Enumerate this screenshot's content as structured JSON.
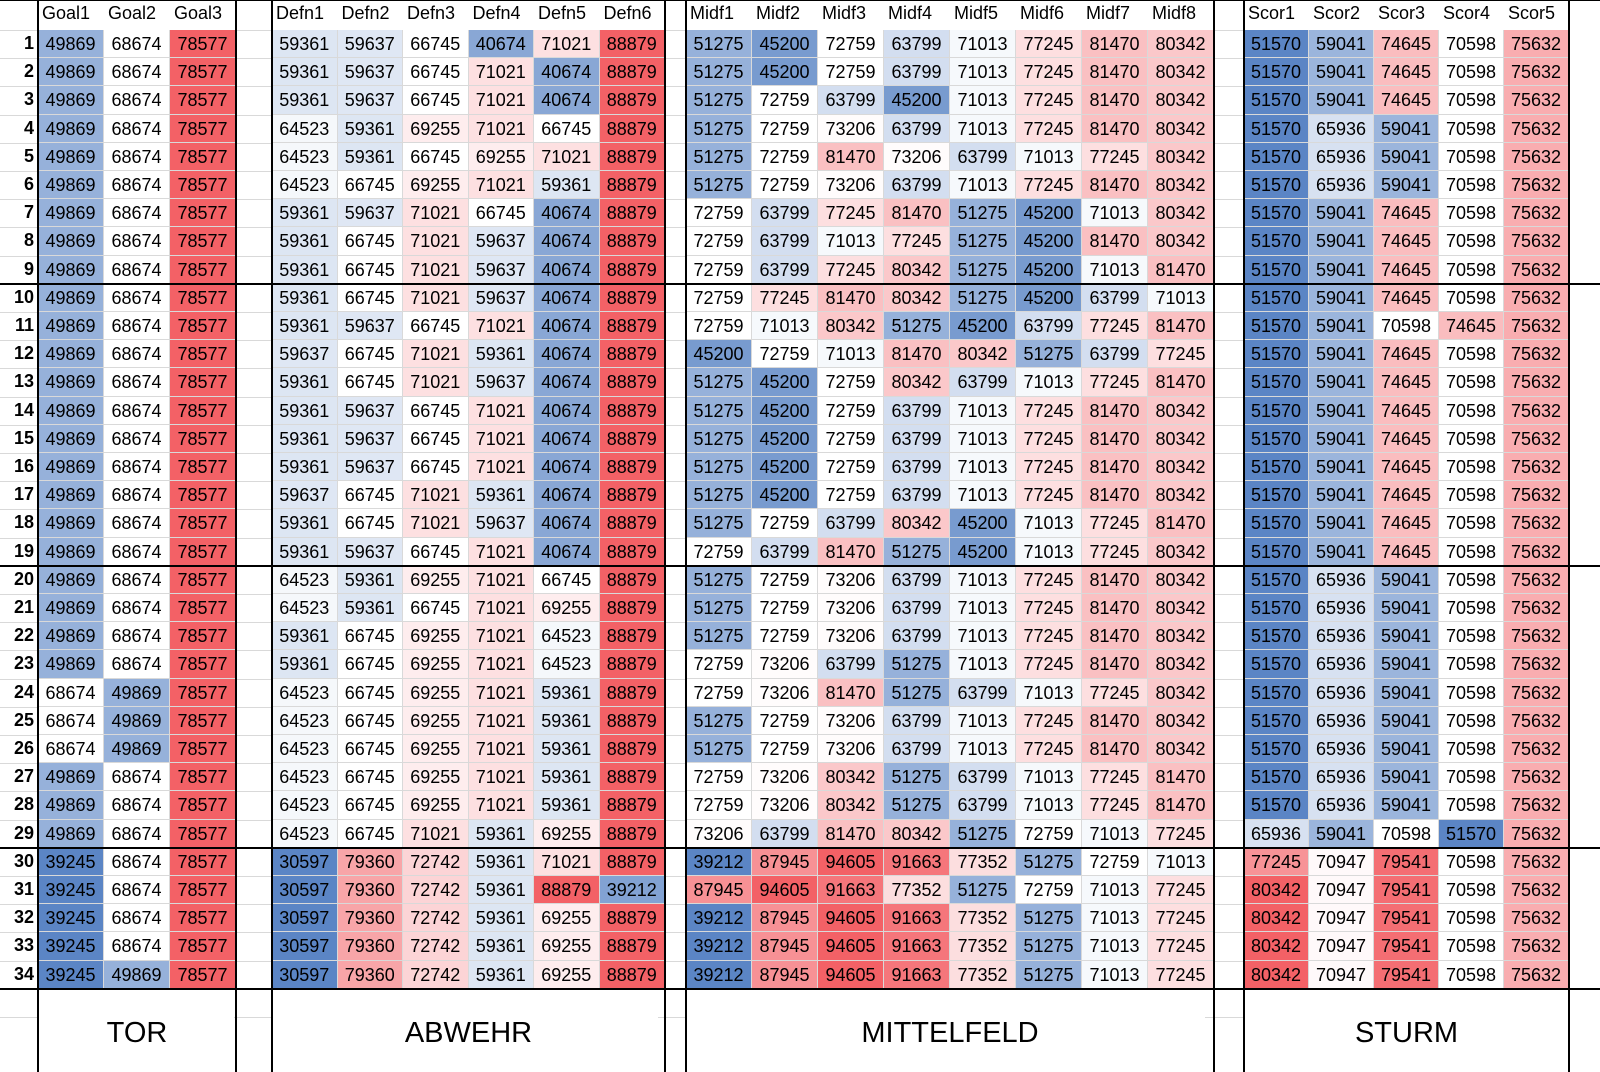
{
  "colors": {
    "low": "#5b85c5",
    "mid": "#ffffff",
    "high": "#f36166",
    "grid": "#d9d9d9",
    "border": "#000000"
  },
  "row_numbers": [
    "1",
    "2",
    "3",
    "4",
    "5",
    "6",
    "7",
    "8",
    "9",
    "10",
    "11",
    "12",
    "13",
    "14",
    "15",
    "16",
    "17",
    "18",
    "19",
    "20",
    "21",
    "22",
    "23",
    "24",
    "25",
    "26",
    "27",
    "28",
    "29",
    "30",
    "31",
    "32",
    "33",
    "34"
  ],
  "groups": [
    {
      "label": "TOR",
      "headers": [
        "Goal1",
        "Goal2",
        "Goal3"
      ],
      "rows": [
        [
          "49869",
          "68674",
          "78577"
        ],
        [
          "49869",
          "68674",
          "78577"
        ],
        [
          "49869",
          "68674",
          "78577"
        ],
        [
          "49869",
          "68674",
          "78577"
        ],
        [
          "49869",
          "68674",
          "78577"
        ],
        [
          "49869",
          "68674",
          "78577"
        ],
        [
          "49869",
          "68674",
          "78577"
        ],
        [
          "49869",
          "68674",
          "78577"
        ],
        [
          "49869",
          "68674",
          "78577"
        ],
        [
          "49869",
          "68674",
          "78577"
        ],
        [
          "49869",
          "68674",
          "78577"
        ],
        [
          "49869",
          "68674",
          "78577"
        ],
        [
          "49869",
          "68674",
          "78577"
        ],
        [
          "49869",
          "68674",
          "78577"
        ],
        [
          "49869",
          "68674",
          "78577"
        ],
        [
          "49869",
          "68674",
          "78577"
        ],
        [
          "49869",
          "68674",
          "78577"
        ],
        [
          "49869",
          "68674",
          "78577"
        ],
        [
          "49869",
          "68674",
          "78577"
        ],
        [
          "49869",
          "68674",
          "78577"
        ],
        [
          "49869",
          "68674",
          "78577"
        ],
        [
          "49869",
          "68674",
          "78577"
        ],
        [
          "49869",
          "68674",
          "78577"
        ],
        [
          "68674",
          "49869",
          "78577"
        ],
        [
          "68674",
          "49869",
          "78577"
        ],
        [
          "68674",
          "49869",
          "78577"
        ],
        [
          "49869",
          "68674",
          "78577"
        ],
        [
          "49869",
          "68674",
          "78577"
        ],
        [
          "49869",
          "68674",
          "78577"
        ],
        [
          "39245",
          "68674",
          "78577"
        ],
        [
          "39245",
          "68674",
          "78577"
        ],
        [
          "39245",
          "68674",
          "78577"
        ],
        [
          "39245",
          "68674",
          "78577"
        ],
        [
          "39245",
          "49869",
          "78577"
        ]
      ]
    },
    {
      "label": "ABWEHR",
      "headers": [
        "Defn1",
        "Defn2",
        "Defn3",
        "Defn4",
        "Defn5",
        "Defn6"
      ],
      "rows": [
        [
          "59361",
          "59637",
          "66745",
          "40674",
          "71021",
          "88879"
        ],
        [
          "59361",
          "59637",
          "66745",
          "71021",
          "40674",
          "88879"
        ],
        [
          "59361",
          "59637",
          "66745",
          "71021",
          "40674",
          "88879"
        ],
        [
          "64523",
          "59361",
          "69255",
          "71021",
          "66745",
          "88879"
        ],
        [
          "64523",
          "59361",
          "66745",
          "69255",
          "71021",
          "88879"
        ],
        [
          "64523",
          "66745",
          "69255",
          "71021",
          "59361",
          "88879"
        ],
        [
          "59361",
          "59637",
          "71021",
          "66745",
          "40674",
          "88879"
        ],
        [
          "59361",
          "66745",
          "71021",
          "59637",
          "40674",
          "88879"
        ],
        [
          "59361",
          "66745",
          "71021",
          "59637",
          "40674",
          "88879"
        ],
        [
          "59361",
          "66745",
          "71021",
          "59637",
          "40674",
          "88879"
        ],
        [
          "59361",
          "59637",
          "66745",
          "71021",
          "40674",
          "88879"
        ],
        [
          "59637",
          "66745",
          "71021",
          "59361",
          "40674",
          "88879"
        ],
        [
          "59361",
          "66745",
          "71021",
          "59637",
          "40674",
          "88879"
        ],
        [
          "59361",
          "59637",
          "66745",
          "71021",
          "40674",
          "88879"
        ],
        [
          "59361",
          "59637",
          "66745",
          "71021",
          "40674",
          "88879"
        ],
        [
          "59361",
          "59637",
          "66745",
          "71021",
          "40674",
          "88879"
        ],
        [
          "59637",
          "66745",
          "71021",
          "59361",
          "40674",
          "88879"
        ],
        [
          "59361",
          "66745",
          "71021",
          "59637",
          "40674",
          "88879"
        ],
        [
          "59361",
          "59637",
          "66745",
          "71021",
          "40674",
          "88879"
        ],
        [
          "64523",
          "59361",
          "69255",
          "71021",
          "66745",
          "88879"
        ],
        [
          "64523",
          "59361",
          "66745",
          "71021",
          "69255",
          "88879"
        ],
        [
          "59361",
          "66745",
          "69255",
          "71021",
          "64523",
          "88879"
        ],
        [
          "59361",
          "66745",
          "69255",
          "71021",
          "64523",
          "88879"
        ],
        [
          "64523",
          "66745",
          "69255",
          "71021",
          "59361",
          "88879"
        ],
        [
          "64523",
          "66745",
          "69255",
          "71021",
          "59361",
          "88879"
        ],
        [
          "64523",
          "66745",
          "69255",
          "71021",
          "59361",
          "88879"
        ],
        [
          "64523",
          "66745",
          "69255",
          "71021",
          "59361",
          "88879"
        ],
        [
          "64523",
          "66745",
          "69255",
          "71021",
          "59361",
          "88879"
        ],
        [
          "64523",
          "66745",
          "71021",
          "59361",
          "69255",
          "88879"
        ],
        [
          "30597",
          "79360",
          "72742",
          "59361",
          "71021",
          "88879"
        ],
        [
          "30597",
          "79360",
          "72742",
          "59361",
          "88879",
          "39212"
        ],
        [
          "30597",
          "79360",
          "72742",
          "59361",
          "69255",
          "88879"
        ],
        [
          "30597",
          "79360",
          "72742",
          "59361",
          "69255",
          "88879"
        ],
        [
          "30597",
          "79360",
          "72742",
          "59361",
          "69255",
          "88879"
        ]
      ]
    },
    {
      "label": "MITTELFELD",
      "headers": [
        "Midf1",
        "Midf2",
        "Midf3",
        "Midf4",
        "Midf5",
        "Midf6",
        "Midf7",
        "Midf8"
      ],
      "rows": [
        [
          "51275",
          "45200",
          "72759",
          "63799",
          "71013",
          "77245",
          "81470",
          "80342"
        ],
        [
          "51275",
          "45200",
          "72759",
          "63799",
          "71013",
          "77245",
          "81470",
          "80342"
        ],
        [
          "51275",
          "72759",
          "63799",
          "45200",
          "71013",
          "77245",
          "81470",
          "80342"
        ],
        [
          "51275",
          "72759",
          "73206",
          "63799",
          "71013",
          "77245",
          "81470",
          "80342"
        ],
        [
          "51275",
          "72759",
          "81470",
          "73206",
          "63799",
          "71013",
          "77245",
          "80342"
        ],
        [
          "51275",
          "72759",
          "73206",
          "63799",
          "71013",
          "77245",
          "81470",
          "80342"
        ],
        [
          "72759",
          "63799",
          "77245",
          "81470",
          "51275",
          "45200",
          "71013",
          "80342"
        ],
        [
          "72759",
          "63799",
          "71013",
          "77245",
          "51275",
          "45200",
          "81470",
          "80342"
        ],
        [
          "72759",
          "63799",
          "77245",
          "80342",
          "51275",
          "45200",
          "71013",
          "81470"
        ],
        [
          "72759",
          "77245",
          "81470",
          "80342",
          "51275",
          "45200",
          "63799",
          "71013"
        ],
        [
          "72759",
          "71013",
          "80342",
          "51275",
          "45200",
          "63799",
          "77245",
          "81470"
        ],
        [
          "45200",
          "72759",
          "71013",
          "81470",
          "80342",
          "51275",
          "63799",
          "77245"
        ],
        [
          "51275",
          "45200",
          "72759",
          "80342",
          "63799",
          "71013",
          "77245",
          "81470"
        ],
        [
          "51275",
          "45200",
          "72759",
          "63799",
          "71013",
          "77245",
          "81470",
          "80342"
        ],
        [
          "51275",
          "45200",
          "72759",
          "63799",
          "71013",
          "77245",
          "81470",
          "80342"
        ],
        [
          "51275",
          "45200",
          "72759",
          "63799",
          "71013",
          "77245",
          "81470",
          "80342"
        ],
        [
          "51275",
          "45200",
          "72759",
          "63799",
          "71013",
          "77245",
          "81470",
          "80342"
        ],
        [
          "51275",
          "72759",
          "63799",
          "80342",
          "45200",
          "71013",
          "77245",
          "81470"
        ],
        [
          "72759",
          "63799",
          "81470",
          "51275",
          "45200",
          "71013",
          "77245",
          "80342"
        ],
        [
          "51275",
          "72759",
          "73206",
          "63799",
          "71013",
          "77245",
          "81470",
          "80342"
        ],
        [
          "51275",
          "72759",
          "73206",
          "63799",
          "71013",
          "77245",
          "81470",
          "80342"
        ],
        [
          "51275",
          "72759",
          "73206",
          "63799",
          "71013",
          "77245",
          "81470",
          "80342"
        ],
        [
          "72759",
          "73206",
          "63799",
          "51275",
          "71013",
          "77245",
          "81470",
          "80342"
        ],
        [
          "72759",
          "73206",
          "81470",
          "51275",
          "63799",
          "71013",
          "77245",
          "80342"
        ],
        [
          "51275",
          "72759",
          "73206",
          "63799",
          "71013",
          "77245",
          "81470",
          "80342"
        ],
        [
          "51275",
          "72759",
          "73206",
          "63799",
          "71013",
          "77245",
          "81470",
          "80342"
        ],
        [
          "72759",
          "73206",
          "80342",
          "51275",
          "63799",
          "71013",
          "77245",
          "81470"
        ],
        [
          "72759",
          "73206",
          "80342",
          "51275",
          "63799",
          "71013",
          "77245",
          "81470"
        ],
        [
          "73206",
          "63799",
          "81470",
          "80342",
          "51275",
          "72759",
          "71013",
          "77245"
        ],
        [
          "39212",
          "87945",
          "94605",
          "91663",
          "77352",
          "51275",
          "72759",
          "71013"
        ],
        [
          "87945",
          "94605",
          "91663",
          "77352",
          "51275",
          "72759",
          "71013",
          "77245"
        ],
        [
          "39212",
          "87945",
          "94605",
          "91663",
          "77352",
          "51275",
          "71013",
          "77245"
        ],
        [
          "39212",
          "87945",
          "94605",
          "91663",
          "77352",
          "51275",
          "71013",
          "77245"
        ],
        [
          "39212",
          "87945",
          "94605",
          "91663",
          "77352",
          "51275",
          "71013",
          "77245"
        ]
      ]
    },
    {
      "label": "STURM",
      "headers": [
        "Scor1",
        "Scor2",
        "Scor3",
        "Scor4",
        "Scor5"
      ],
      "rows": [
        [
          "51570",
          "59041",
          "74645",
          "70598",
          "75632"
        ],
        [
          "51570",
          "59041",
          "74645",
          "70598",
          "75632"
        ],
        [
          "51570",
          "59041",
          "74645",
          "70598",
          "75632"
        ],
        [
          "51570",
          "65936",
          "59041",
          "70598",
          "75632"
        ],
        [
          "51570",
          "65936",
          "59041",
          "70598",
          "75632"
        ],
        [
          "51570",
          "65936",
          "59041",
          "70598",
          "75632"
        ],
        [
          "51570",
          "59041",
          "74645",
          "70598",
          "75632"
        ],
        [
          "51570",
          "59041",
          "74645",
          "70598",
          "75632"
        ],
        [
          "51570",
          "59041",
          "74645",
          "70598",
          "75632"
        ],
        [
          "51570",
          "59041",
          "74645",
          "70598",
          "75632"
        ],
        [
          "51570",
          "59041",
          "70598",
          "74645",
          "75632"
        ],
        [
          "51570",
          "59041",
          "74645",
          "70598",
          "75632"
        ],
        [
          "51570",
          "59041",
          "74645",
          "70598",
          "75632"
        ],
        [
          "51570",
          "59041",
          "74645",
          "70598",
          "75632"
        ],
        [
          "51570",
          "59041",
          "74645",
          "70598",
          "75632"
        ],
        [
          "51570",
          "59041",
          "74645",
          "70598",
          "75632"
        ],
        [
          "51570",
          "59041",
          "74645",
          "70598",
          "75632"
        ],
        [
          "51570",
          "59041",
          "74645",
          "70598",
          "75632"
        ],
        [
          "51570",
          "59041",
          "74645",
          "70598",
          "75632"
        ],
        [
          "51570",
          "65936",
          "59041",
          "70598",
          "75632"
        ],
        [
          "51570",
          "65936",
          "59041",
          "70598",
          "75632"
        ],
        [
          "51570",
          "65936",
          "59041",
          "70598",
          "75632"
        ],
        [
          "51570",
          "65936",
          "59041",
          "70598",
          "75632"
        ],
        [
          "51570",
          "65936",
          "59041",
          "70598",
          "75632"
        ],
        [
          "51570",
          "65936",
          "59041",
          "70598",
          "75632"
        ],
        [
          "51570",
          "65936",
          "59041",
          "70598",
          "75632"
        ],
        [
          "51570",
          "65936",
          "59041",
          "70598",
          "75632"
        ],
        [
          "51570",
          "65936",
          "59041",
          "70598",
          "75632"
        ],
        [
          "65936",
          "59041",
          "70598",
          "51570",
          "75632"
        ],
        [
          "77245",
          "70947",
          "79541",
          "70598",
          "75632"
        ],
        [
          "80342",
          "70947",
          "79541",
          "70598",
          "75632"
        ],
        [
          "80342",
          "70947",
          "79541",
          "70598",
          "75632"
        ],
        [
          "80342",
          "70947",
          "79541",
          "70598",
          "75632"
        ],
        [
          "80342",
          "70947",
          "79541",
          "70598",
          "75632"
        ]
      ]
    }
  ]
}
